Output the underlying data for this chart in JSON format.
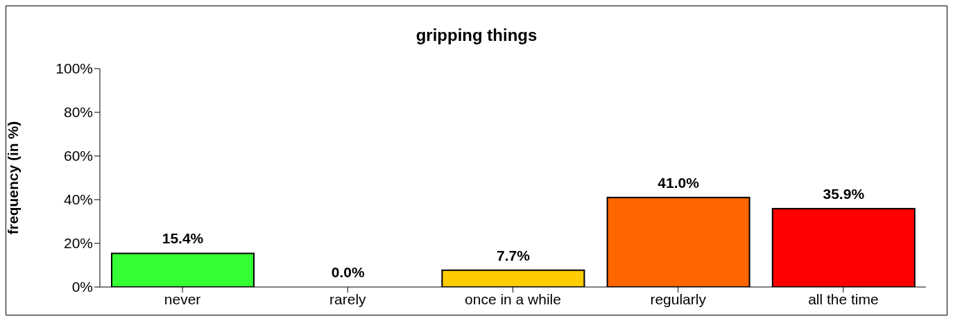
{
  "chart_data": {
    "type": "bar",
    "title": "gripping things",
    "ylabel": "frequency (in %)",
    "categories": [
      "never",
      "rarely",
      "once in a while",
      "regularly",
      "all the time"
    ],
    "values": [
      15.4,
      0.0,
      7.7,
      41.0,
      35.9
    ],
    "colors": [
      "#33ff33",
      "#ffffff",
      "#ffcc00",
      "#ff6600",
      "#ff0000"
    ],
    "value_labels": [
      "15.4%",
      "0.0%",
      "7.7%",
      "41.0%",
      "35.9%"
    ],
    "ylim": [
      0,
      100
    ],
    "yticks": [
      {
        "value": 0,
        "label": "0%"
      },
      {
        "value": 20,
        "label": "20%"
      },
      {
        "value": 40,
        "label": "40%"
      },
      {
        "value": 60,
        "label": "60%"
      },
      {
        "value": 80,
        "label": "80%"
      },
      {
        "value": 100,
        "label": "100%"
      }
    ],
    "grid": false
  }
}
